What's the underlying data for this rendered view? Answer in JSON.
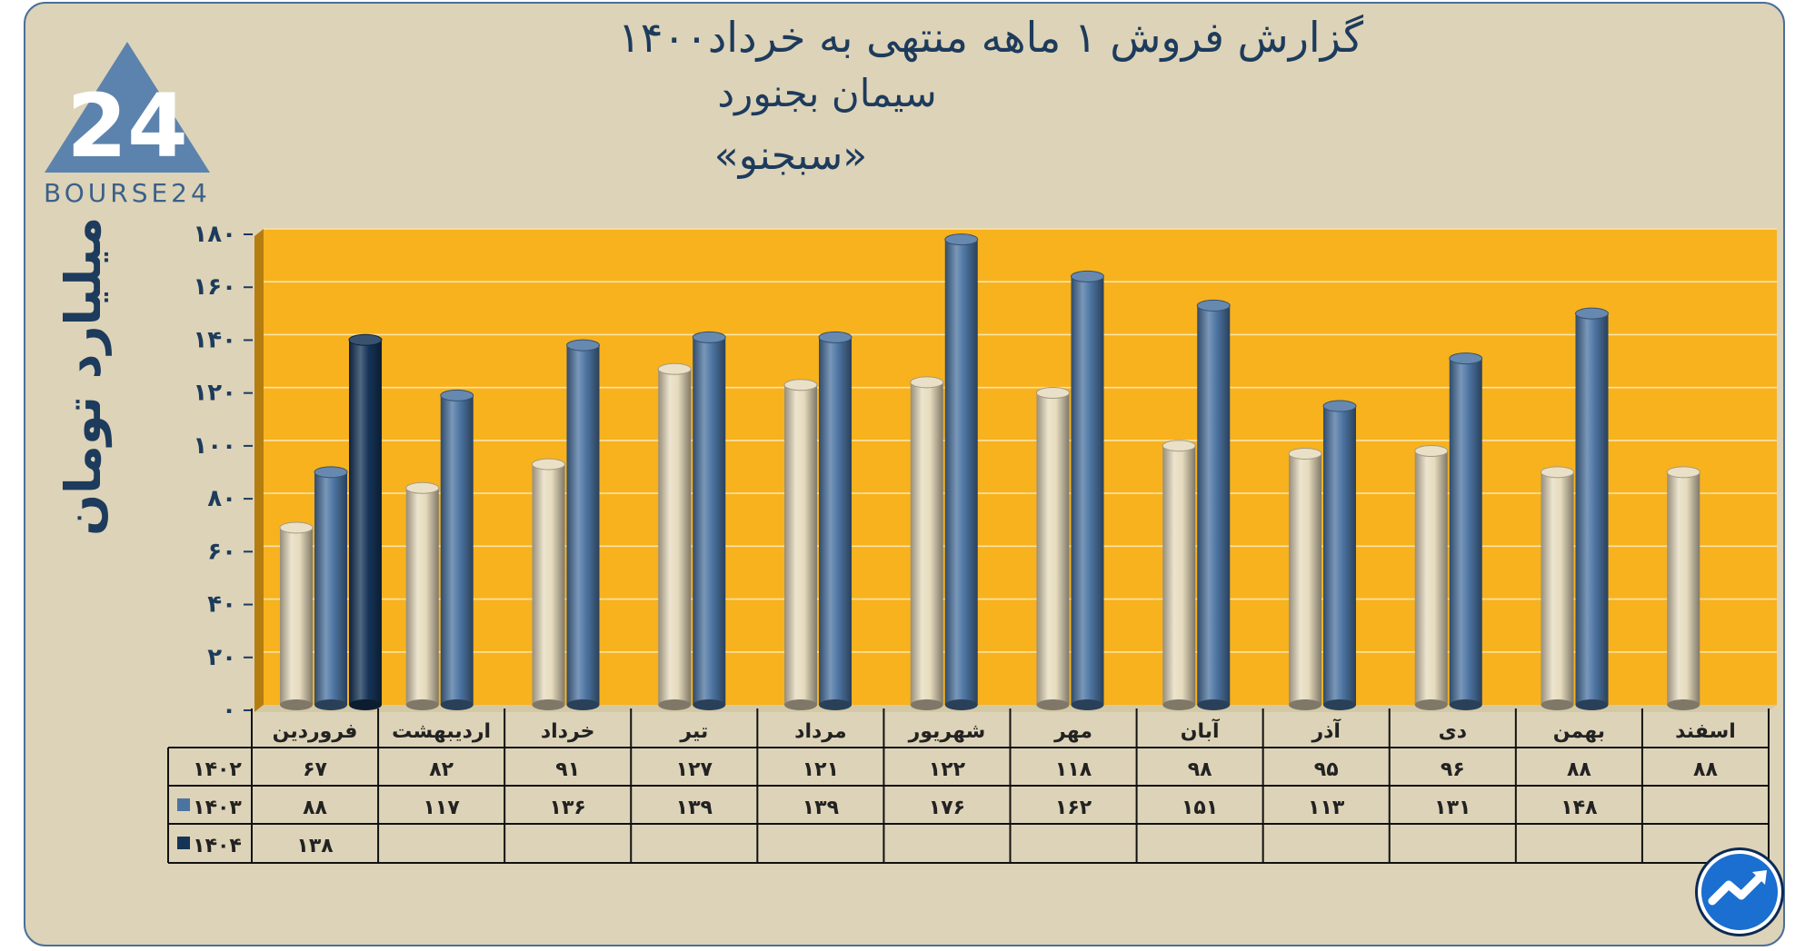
{
  "header": {
    "title_line1": "گزارش  فروش ۱ ماهه منتهی به خرداد۱۴۰۰",
    "title_line2": "سیمان بجنورد",
    "title_line3": "«سبجنو»"
  },
  "brand": {
    "logo_text": "BOURSE24",
    "logo_glyph": "24"
  },
  "colors": {
    "plot_bg": "#f7b21e",
    "bar_1402": "#e6dbbd",
    "bar_1403": "#4c74a1",
    "bar_1404": "#153457",
    "ink": "#1d3b5c"
  },
  "chart_data": {
    "type": "bar",
    "categories": [
      "فروردین",
      "اردیبهشت",
      "خرداد",
      "تیر",
      "مرداد",
      "شهریور",
      "مهر",
      "آبان",
      "آذر",
      "دی",
      "بهمن",
      "اسفند"
    ],
    "series": [
      {
        "name": "۱۴۰۲",
        "values": [
          67,
          82,
          91,
          127,
          121,
          122,
          118,
          98,
          95,
          96,
          88,
          88
        ],
        "labels": [
          "۶۷",
          "۸۲",
          "۹۱",
          "۱۲۷",
          "۱۲۱",
          "۱۲۲",
          "۱۱۸",
          "۹۸",
          "۹۵",
          "۹۶",
          "۸۸",
          "۸۸"
        ]
      },
      {
        "name": "۱۴۰۳",
        "values": [
          88,
          117,
          136,
          139,
          139,
          176,
          162,
          151,
          113,
          131,
          148,
          null
        ],
        "labels": [
          "۸۸",
          "۱۱۷",
          "۱۳۶",
          "۱۳۹",
          "۱۳۹",
          "۱۷۶",
          "۱۶۲",
          "۱۵۱",
          "۱۱۳",
          "۱۳۱",
          "۱۴۸",
          ""
        ]
      },
      {
        "name": "۱۴۰۴",
        "values": [
          138,
          null,
          null,
          null,
          null,
          null,
          null,
          null,
          null,
          null,
          null,
          null
        ],
        "labels": [
          "۱۳۸",
          "",
          "",
          "",
          "",
          "",
          "",
          "",
          "",
          "",
          "",
          ""
        ]
      }
    ],
    "ylabel": "میلیارد تومان",
    "ylim": [
      0,
      180
    ],
    "yticks": [
      0,
      20,
      40,
      60,
      80,
      100,
      120,
      140,
      160,
      180
    ],
    "ytick_labels": [
      "۰",
      "۲۰",
      "۴۰",
      "۶۰",
      "۸۰",
      "۱۰۰",
      "۱۲۰",
      "۱۴۰",
      "۱۶۰",
      "۱۸۰"
    ],
    "grid": true,
    "legend": "data-table"
  }
}
